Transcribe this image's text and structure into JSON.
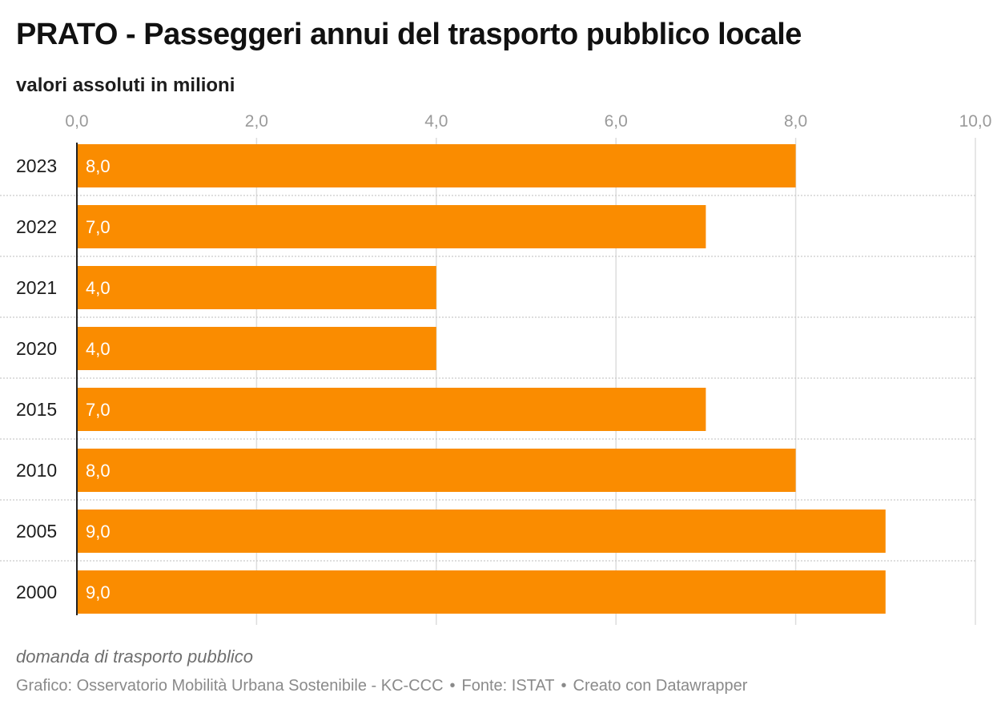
{
  "header": {
    "title": "PRATO - Passeggeri annui del trasporto pubblico locale",
    "subtitle": "valori assoluti in milioni"
  },
  "footer": {
    "note": "domanda di trasporto pubblico",
    "credit": "Grafico: Osservatorio Mobilità Urbana Sostenibile - KC-CCC",
    "source": "Fonte: ISTAT",
    "tool": "Creato con Datawrapper",
    "separator": "•"
  },
  "colors": {
    "bar": "#fa8c00",
    "value_label": "#ffffff",
    "grid": "#dddddd",
    "axis_tick_label": "#9a9a9a"
  },
  "chart_data": {
    "type": "bar",
    "orientation": "horizontal",
    "categories": [
      "2023",
      "2022",
      "2021",
      "2020",
      "2015",
      "2010",
      "2005",
      "2000"
    ],
    "values": [
      8.0,
      7.0,
      4.0,
      4.0,
      7.0,
      8.0,
      9.0,
      9.0
    ],
    "value_labels": [
      "8,0",
      "7,0",
      "4,0",
      "4,0",
      "7,0",
      "8,0",
      "9,0",
      "9,0"
    ],
    "xlim": [
      0,
      10
    ],
    "xticks": [
      0,
      2,
      4,
      6,
      8,
      10
    ],
    "xtick_labels": [
      "0,0",
      "2,0",
      "4,0",
      "6,0",
      "8,0",
      "10,0"
    ],
    "xaxis_position": "top",
    "grid": true
  }
}
